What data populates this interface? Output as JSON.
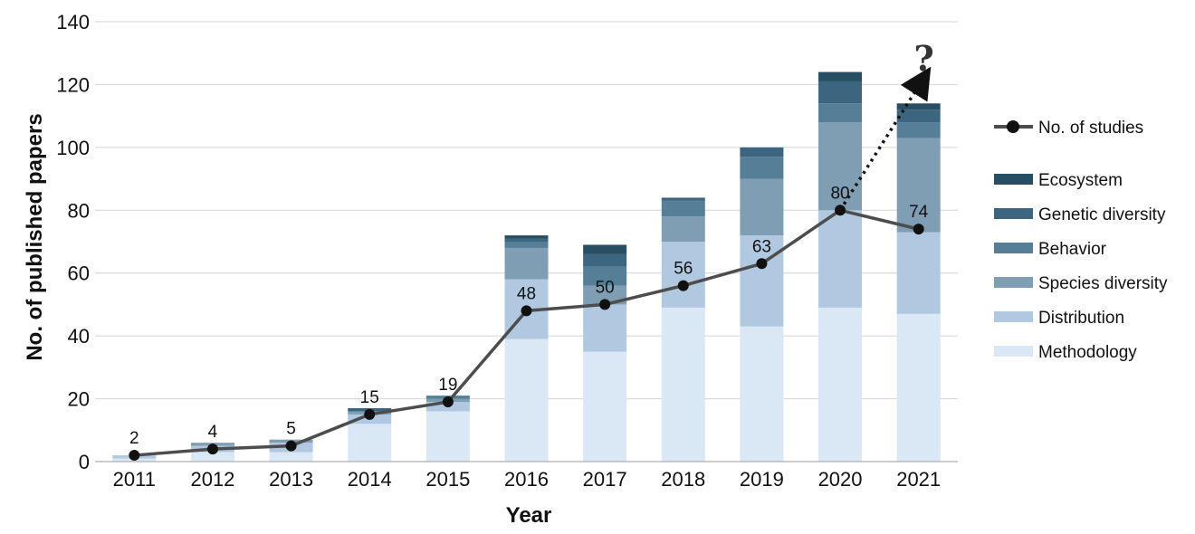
{
  "chart_data": {
    "type": "bar",
    "stacked": true,
    "categories": [
      "2011",
      "2012",
      "2013",
      "2014",
      "2015",
      "2016",
      "2017",
      "2018",
      "2019",
      "2020",
      "2021"
    ],
    "xlabel": "Year",
    "ylabel": "No. of published papers",
    "ylim": [
      0,
      140
    ],
    "yticks": [
      0,
      20,
      40,
      60,
      80,
      100,
      120,
      140
    ],
    "grid": "horizontal",
    "legend_position": "right",
    "series": [
      {
        "name": "Methodology",
        "color": "#dae7f5",
        "values": [
          1,
          3,
          3,
          12,
          16,
          39,
          35,
          49,
          43,
          49,
          47
        ]
      },
      {
        "name": "Distribution",
        "color": "#b0c9e1",
        "values": [
          1,
          2,
          3,
          3,
          3,
          19,
          15,
          21,
          29,
          31,
          26
        ]
      },
      {
        "name": "Species diversity",
        "color": "#7f9db3",
        "values": [
          0,
          1,
          1,
          1,
          1,
          10,
          6,
          8,
          18,
          28,
          30
        ]
      },
      {
        "name": "Behavior",
        "color": "#547f96",
        "values": [
          0,
          0,
          0,
          0,
          1,
          2,
          6,
          5,
          7,
          6,
          5
        ]
      },
      {
        "name": "Genetic diversity",
        "color": "#3c6580",
        "values": [
          0,
          0,
          0,
          1,
          0,
          1,
          4,
          1,
          3,
          7,
          4
        ]
      },
      {
        "name": "Ecosystem",
        "color": "#284e63",
        "values": [
          0,
          0,
          0,
          0,
          0,
          1,
          3,
          0,
          0,
          3,
          2
        ]
      }
    ],
    "line_series": {
      "name": "No. of studies",
      "color": "#4d4d4d",
      "values": [
        2,
        4,
        5,
        15,
        19,
        48,
        50,
        56,
        63,
        80,
        74
      ],
      "labels": [
        "2",
        "4",
        "5",
        "15",
        "19",
        "48",
        "50",
        "56",
        "63",
        "80",
        "74"
      ]
    },
    "annotation": {
      "text": "?",
      "arrow_style": "dotted",
      "from": {
        "x": "2020",
        "y": 80
      },
      "to": {
        "x": "2021",
        "y": 122
      }
    }
  }
}
